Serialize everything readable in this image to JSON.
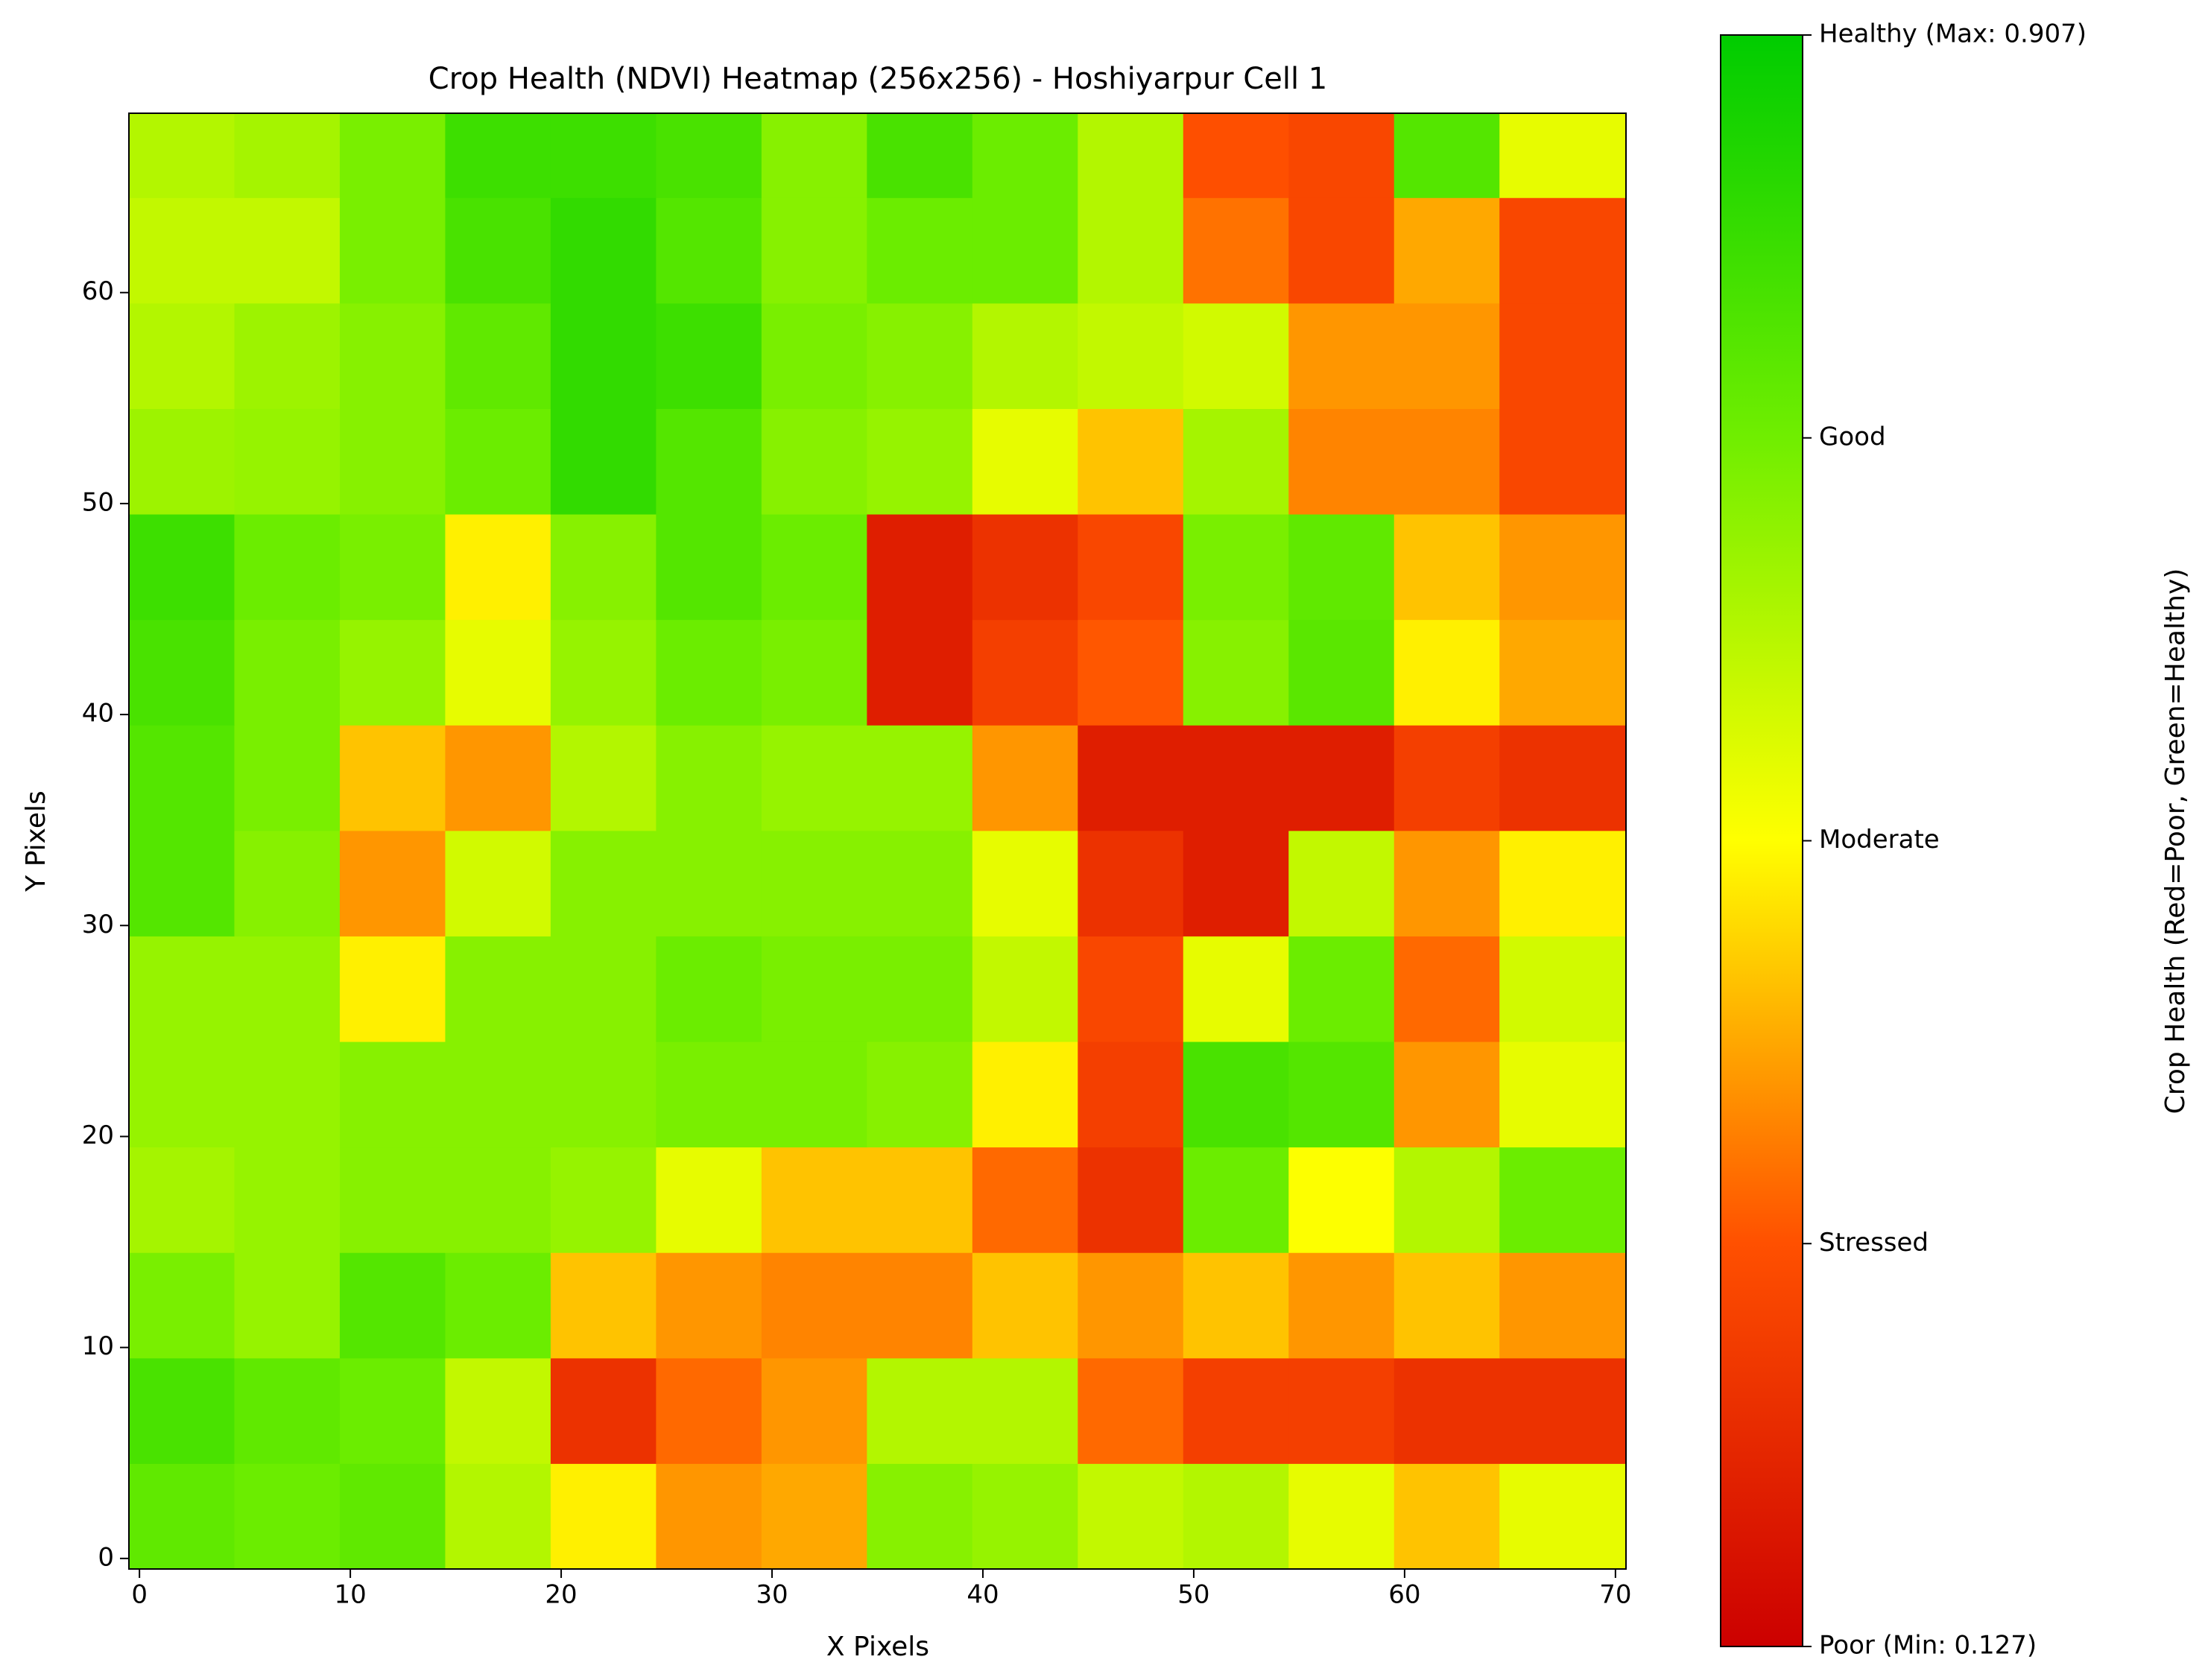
{
  "chart_data": {
    "type": "heatmap",
    "title": "Crop Health (NDVI) Heatmap (256x256) - Hoshiyarpur Cell 1",
    "x_label": "X Pixels",
    "y_label": "Y Pixels",
    "colorbar_label": "Crop Health (Red=Poor, Green=Healthy)",
    "xlim": [
      -0.5,
      70.5
    ],
    "ylim": [
      -0.5,
      68.5
    ],
    "xticks": [
      0,
      10,
      20,
      30,
      40,
      50,
      60,
      70
    ],
    "yticks": [
      0,
      10,
      20,
      30,
      40,
      50,
      60
    ],
    "xbins": [
      -0.5,
      4.5,
      9.5,
      14.5,
      19.5,
      24.5,
      29.5,
      34.5,
      39.5,
      44.5,
      49.5,
      54.5,
      59.5,
      64.5,
      70.5
    ],
    "ybins": [
      -0.5,
      4.5,
      9.5,
      14.5,
      19.5,
      24.5,
      29.5,
      34.5,
      39.5,
      44.5,
      49.5,
      54.5,
      59.5,
      64.5,
      68.5
    ],
    "colormap": [
      "#cc0000",
      "#ff5000",
      "#ffff00",
      "#70ee00",
      "#00cc00"
    ],
    "clim": [
      0.127,
      0.907
    ],
    "colorbar_ticks": [
      {
        "value": 0.907,
        "label": "Healthy (Max: 0.907)"
      },
      {
        "value": 0.712,
        "label": "Good"
      },
      {
        "value": 0.517,
        "label": "Moderate"
      },
      {
        "value": 0.322,
        "label": "Stressed"
      },
      {
        "value": 0.127,
        "label": "Poor (Min: 0.127)"
      }
    ],
    "values": [
      [
        0.74,
        0.72,
        0.74,
        0.62,
        0.5,
        0.4,
        0.42,
        0.68,
        0.66,
        0.6,
        0.62,
        0.55,
        0.45,
        0.55
      ],
      [
        0.78,
        0.74,
        0.72,
        0.6,
        0.25,
        0.35,
        0.4,
        0.62,
        0.62,
        0.35,
        0.28,
        0.28,
        0.25,
        0.25
      ],
      [
        0.7,
        0.66,
        0.76,
        0.72,
        0.45,
        0.4,
        0.38,
        0.38,
        0.45,
        0.4,
        0.45,
        0.4,
        0.45,
        0.4
      ],
      [
        0.64,
        0.66,
        0.68,
        0.68,
        0.66,
        0.55,
        0.45,
        0.45,
        0.35,
        0.25,
        0.72,
        0.52,
        0.62,
        0.72
      ],
      [
        0.66,
        0.66,
        0.68,
        0.68,
        0.68,
        0.7,
        0.7,
        0.68,
        0.5,
        0.28,
        0.78,
        0.76,
        0.4,
        0.55
      ],
      [
        0.66,
        0.66,
        0.5,
        0.68,
        0.68,
        0.72,
        0.7,
        0.7,
        0.6,
        0.3,
        0.55,
        0.72,
        0.35,
        0.58
      ],
      [
        0.76,
        0.68,
        0.4,
        0.58,
        0.68,
        0.68,
        0.68,
        0.68,
        0.55,
        0.25,
        0.2,
        0.6,
        0.4,
        0.5
      ],
      [
        0.76,
        0.7,
        0.45,
        0.4,
        0.62,
        0.68,
        0.66,
        0.66,
        0.4,
        0.2,
        0.2,
        0.2,
        0.28,
        0.25
      ],
      [
        0.78,
        0.7,
        0.66,
        0.55,
        0.66,
        0.72,
        0.7,
        0.2,
        0.28,
        0.33,
        0.68,
        0.75,
        0.5,
        0.42
      ],
      [
        0.8,
        0.72,
        0.7,
        0.5,
        0.68,
        0.76,
        0.72,
        0.2,
        0.25,
        0.3,
        0.7,
        0.74,
        0.45,
        0.4
      ],
      [
        0.65,
        0.66,
        0.68,
        0.72,
        0.82,
        0.76,
        0.68,
        0.66,
        0.55,
        0.45,
        0.64,
        0.38,
        0.38,
        0.3
      ],
      [
        0.62,
        0.65,
        0.68,
        0.74,
        0.82,
        0.8,
        0.7,
        0.68,
        0.62,
        0.6,
        0.58,
        0.4,
        0.4,
        0.3
      ],
      [
        0.6,
        0.6,
        0.7,
        0.78,
        0.82,
        0.76,
        0.68,
        0.72,
        0.72,
        0.62,
        0.36,
        0.3,
        0.42,
        0.3
      ],
      [
        0.62,
        0.64,
        0.7,
        0.8,
        0.8,
        0.78,
        0.68,
        0.78,
        0.72,
        0.62,
        0.32,
        0.3,
        0.76,
        0.55
      ]
    ]
  }
}
